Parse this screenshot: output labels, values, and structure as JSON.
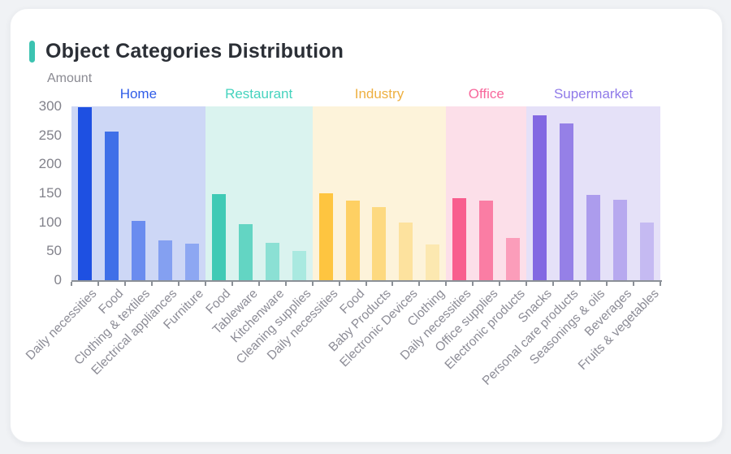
{
  "card": {
    "title": "Object Categories Distribution",
    "accent_color": "#3cc3b1"
  },
  "chart_data": {
    "type": "bar",
    "title": "Object Categories Distribution",
    "xlabel": "",
    "ylabel": "Amount",
    "ylim": [
      0,
      300
    ],
    "yticks": [
      0,
      50,
      100,
      150,
      200,
      250,
      300
    ],
    "grid": false,
    "legend_position": "group-headers-top",
    "groups": [
      {
        "name": "Home",
        "label_color": "#2f5ce8",
        "band_color": "#cdd7f6",
        "bars": [
          {
            "label": "Daily necessities",
            "value": 298,
            "color": "#1e50e2"
          },
          {
            "label": "Food",
            "value": 257,
            "color": "#3f6fe8"
          },
          {
            "label": "Clothing & textiles",
            "value": 102,
            "color": "#6a8cef"
          },
          {
            "label": "Electrical appliances",
            "value": 68,
            "color": "#84a0f1"
          },
          {
            "label": "Furniture",
            "value": 63,
            "color": "#8da7f2"
          }
        ]
      },
      {
        "name": "Restaurant",
        "label_color": "#45d3be",
        "band_color": "#daf3ef",
        "bars": [
          {
            "label": "Food",
            "value": 148,
            "color": "#3fcab5"
          },
          {
            "label": "Tableware",
            "value": 97,
            "color": "#63d5c3"
          },
          {
            "label": "Kitchenware",
            "value": 64,
            "color": "#8be0d4"
          },
          {
            "label": "Cleaning supplies",
            "value": 50,
            "color": "#a9e9e0"
          }
        ]
      },
      {
        "name": "Industry",
        "label_color": "#eeb041",
        "band_color": "#fdf3da",
        "bars": [
          {
            "label": "Daily necessities",
            "value": 150,
            "color": "#fec540"
          },
          {
            "label": "Food",
            "value": 138,
            "color": "#fed063"
          },
          {
            "label": "Baby Products",
            "value": 126,
            "color": "#fdd980"
          },
          {
            "label": "Electronic Devices",
            "value": 99,
            "color": "#fde29e"
          },
          {
            "label": "Clothing",
            "value": 62,
            "color": "#fce8b0"
          }
        ]
      },
      {
        "name": "Office",
        "label_color": "#f8689c",
        "band_color": "#fcdfe9",
        "bars": [
          {
            "label": "Daily necessities",
            "value": 141,
            "color": "#f85e8e"
          },
          {
            "label": "Office supplies",
            "value": 137,
            "color": "#fa7da4"
          },
          {
            "label": "Electronic products",
            "value": 73,
            "color": "#fb9dba"
          }
        ]
      },
      {
        "name": "Supermarket",
        "label_color": "#8f7ae9",
        "band_color": "#e5e1f8",
        "bars": [
          {
            "label": "Snacks",
            "value": 285,
            "color": "#8268e2"
          },
          {
            "label": "Personal care products",
            "value": 271,
            "color": "#9580e7"
          },
          {
            "label": "Seasonings & oils",
            "value": 147,
            "color": "#ac9ced"
          },
          {
            "label": "Beverages",
            "value": 139,
            "color": "#b7a9ef"
          },
          {
            "label": "Fruits & vegetables",
            "value": 100,
            "color": "#c5baf2"
          }
        ]
      }
    ]
  }
}
